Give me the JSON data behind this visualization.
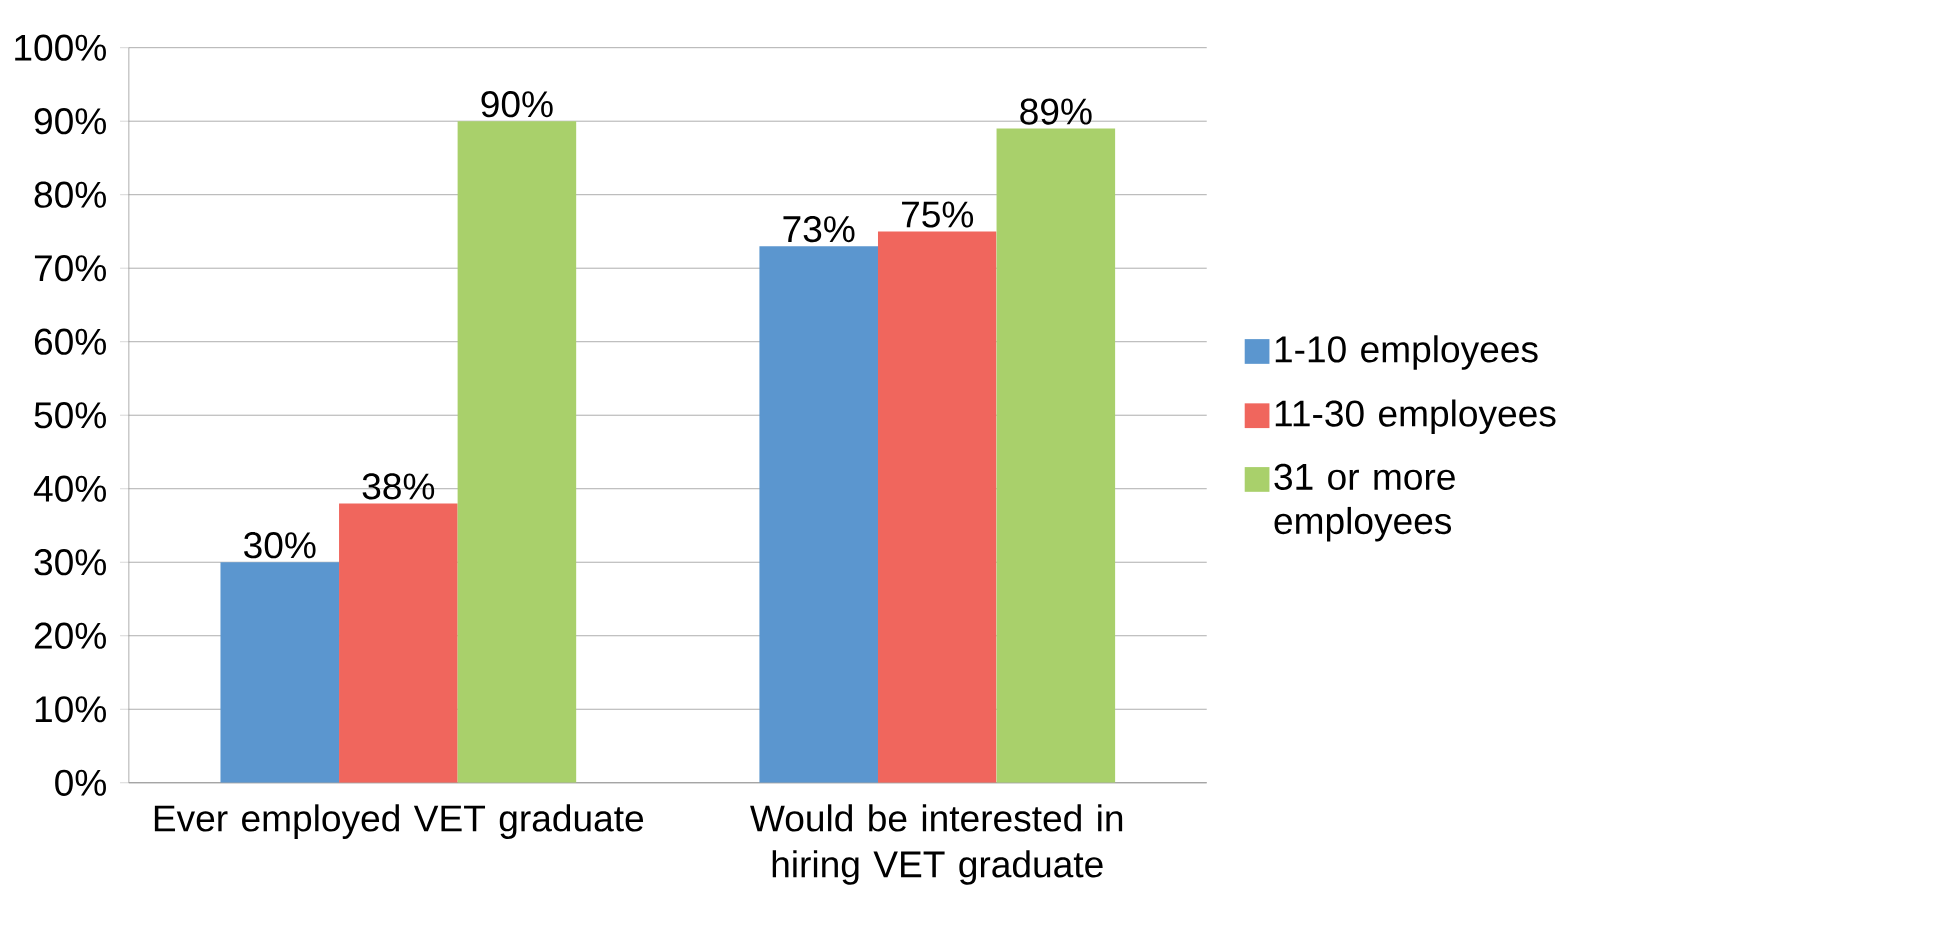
{
  "chart_data": {
    "type": "bar",
    "categories": [
      "Ever employed VET graduate",
      "Would be interested in hiring VET graduate"
    ],
    "series": [
      {
        "name": "1-10 employees",
        "color": "#5b96cf",
        "values": [
          30,
          73
        ],
        "value_labels": [
          "30%",
          "73%"
        ]
      },
      {
        "name": "11-30 employees",
        "color": "#f0665d",
        "values": [
          38,
          75
        ],
        "value_labels": [
          "38%",
          "75%"
        ]
      },
      {
        "name": "31 or more employees",
        "color": "#a9d06b",
        "values": [
          90,
          89
        ],
        "value_labels": [
          "90%",
          "89%"
        ]
      }
    ],
    "ylim": [
      0,
      100
    ],
    "yticks": [
      {
        "value": 0,
        "label": "0%"
      },
      {
        "value": 10,
        "label": "10%"
      },
      {
        "value": 20,
        "label": "20%"
      },
      {
        "value": 30,
        "label": "30%"
      },
      {
        "value": 40,
        "label": "40%"
      },
      {
        "value": 50,
        "label": "50%"
      },
      {
        "value": 60,
        "label": "60%"
      },
      {
        "value": 70,
        "label": "70%"
      },
      {
        "value": 80,
        "label": "80%"
      },
      {
        "value": 90,
        "label": "90%"
      },
      {
        "value": 100,
        "label": "100%"
      }
    ],
    "grid": "y",
    "legend": "right"
  }
}
